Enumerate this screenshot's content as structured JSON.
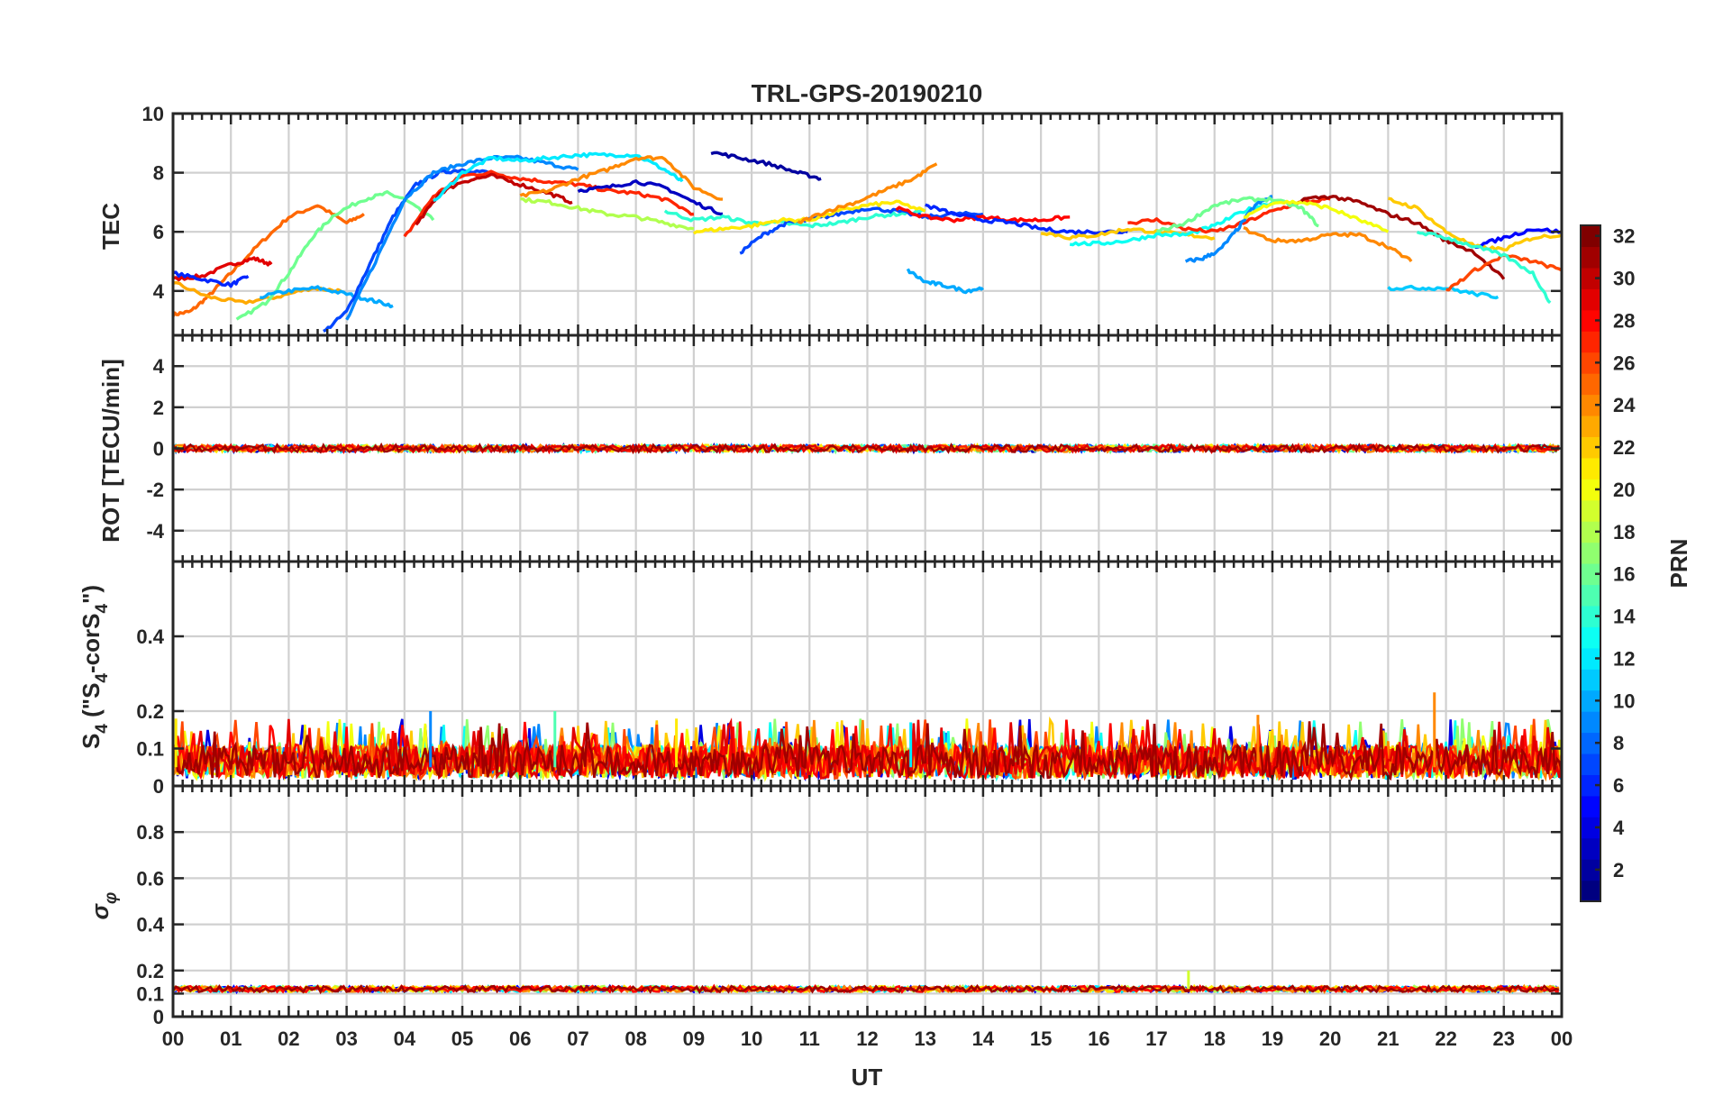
{
  "chart_data": {
    "type": "line",
    "title": "TRL-GPS-20190210",
    "xlabel": "UT",
    "x_ticks": [
      "00",
      "01",
      "02",
      "03",
      "04",
      "05",
      "06",
      "07",
      "08",
      "09",
      "10",
      "11",
      "12",
      "13",
      "14",
      "15",
      "16",
      "17",
      "18",
      "19",
      "20",
      "21",
      "22",
      "23",
      "00"
    ],
    "xlim": [
      0,
      24
    ],
    "grid": true,
    "colorbar": {
      "label": "PRN",
      "range": [
        1,
        32
      ],
      "ticks": [
        2,
        4,
        6,
        8,
        10,
        12,
        14,
        16,
        18,
        20,
        22,
        24,
        26,
        28,
        30,
        32
      ],
      "colormap": "jet",
      "position": "right"
    },
    "panels": [
      {
        "id": "tec",
        "ylabel": "TEC",
        "ylim": [
          2.5,
          10
        ],
        "yticks": [
          4,
          6,
          8,
          10
        ],
        "series": [
          {
            "prn": 25,
            "x": [
              0.0,
              0.3,
              0.6,
              1.0,
              1.5,
              2.0,
              2.5,
              3.0,
              3.3
            ],
            "y": [
              3.2,
              3.3,
              3.8,
              4.6,
              5.6,
              6.5,
              6.9,
              6.3,
              6.6
            ]
          },
          {
            "prn": 29,
            "x": [
              0.0,
              0.5,
              1.0,
              1.4,
              1.7
            ],
            "y": [
              4.4,
              4.5,
              4.9,
              5.1,
              4.9
            ]
          },
          {
            "prn": 6,
            "x": [
              0.0,
              0.5,
              1.0,
              1.3
            ],
            "y": [
              4.6,
              4.4,
              4.2,
              4.5
            ]
          },
          {
            "prn": 23,
            "x": [
              0.0,
              0.6,
              1.2,
              1.8,
              2.4,
              2.9
            ],
            "y": [
              4.3,
              3.8,
              3.6,
              3.8,
              4.1,
              4.0
            ]
          },
          {
            "prn": 16,
            "x": [
              1.1,
              1.6,
              2.0,
              2.4,
              2.8,
              3.3,
              3.7,
              4.0,
              4.5
            ],
            "y": [
              3.0,
              3.6,
              4.6,
              5.8,
              6.6,
              7.1,
              7.3,
              7.1,
              6.4
            ]
          },
          {
            "prn": 10,
            "x": [
              1.5,
              2.0,
              2.5,
              3.0,
              3.4,
              3.8
            ],
            "y": [
              3.8,
              4.0,
              4.1,
              3.9,
              3.7,
              3.5
            ]
          },
          {
            "prn": 7,
            "x": [
              2.6,
              3.0,
              3.4,
              3.8,
              4.2,
              4.6,
              5.0,
              5.5
            ],
            "y": [
              2.6,
              3.3,
              4.9,
              6.5,
              7.6,
              8.0,
              8.1,
              8.0
            ]
          },
          {
            "prn": 9,
            "x": [
              3.0,
              3.5,
              4.0,
              4.5,
              5.0,
              5.5,
              6.0,
              6.5,
              7.0
            ],
            "y": [
              3.0,
              5.0,
              7.1,
              8.0,
              8.3,
              8.5,
              8.5,
              8.3,
              8.1
            ]
          },
          {
            "prn": 27,
            "x": [
              4.0,
              4.5,
              5.0,
              5.5,
              6.0,
              6.5,
              7.0,
              7.5,
              8.0,
              8.5,
              9.0
            ],
            "y": [
              5.8,
              7.2,
              7.9,
              8.0,
              7.8,
              7.7,
              7.6,
              7.4,
              7.3,
              7.1,
              6.6
            ]
          },
          {
            "prn": 30,
            "x": [
              4.2,
              4.6,
              5.0,
              5.5,
              6.0,
              6.5,
              6.9
            ],
            "y": [
              6.2,
              7.3,
              7.7,
              7.9,
              7.6,
              7.3,
              7.0
            ]
          },
          {
            "prn": 12,
            "x": [
              4.5,
              5.0,
              5.5,
              6.0,
              6.5,
              7.0,
              7.5,
              8.0,
              8.5,
              8.8
            ],
            "y": [
              7.0,
              8.0,
              8.5,
              8.4,
              8.5,
              8.6,
              8.6,
              8.6,
              8.1,
              7.7
            ]
          },
          {
            "prn": 24,
            "x": [
              6.0,
              6.5,
              7.0,
              7.5,
              8.0,
              8.5,
              9.0,
              9.5
            ],
            "y": [
              7.2,
              7.4,
              7.8,
              8.1,
              8.5,
              8.5,
              7.5,
              7.1
            ]
          },
          {
            "prn": 18,
            "x": [
              6.0,
              6.5,
              7.0,
              7.5,
              8.0,
              8.5,
              9.0
            ],
            "y": [
              7.1,
              7.0,
              6.8,
              6.6,
              6.5,
              6.3,
              6.1
            ]
          },
          {
            "prn": 3,
            "x": [
              7.0,
              7.5,
              8.0,
              8.5,
              9.0,
              9.5
            ],
            "y": [
              7.4,
              7.5,
              7.7,
              7.5,
              7.0,
              6.6
            ]
          },
          {
            "prn": 2,
            "x": [
              9.3,
              9.8,
              10.3,
              10.8,
              11.2
            ],
            "y": [
              8.7,
              8.5,
              8.3,
              8.0,
              7.8
            ]
          },
          {
            "prn": 14,
            "x": [
              8.5,
              9.0,
              9.5,
              10.0,
              10.5,
              11.0,
              11.5,
              12.0,
              12.5,
              13.0
            ],
            "y": [
              6.7,
              6.4,
              6.5,
              6.3,
              6.3,
              6.2,
              6.3,
              6.5,
              6.6,
              6.7
            ]
          },
          {
            "prn": 7,
            "x": [
              9.8,
              10.2,
              10.6,
              11.0,
              11.5,
              12.0,
              12.5,
              13.0,
              13.5,
              14.0
            ],
            "y": [
              5.3,
              5.9,
              6.3,
              6.4,
              6.6,
              6.8,
              6.7,
              6.5,
              6.6,
              6.6
            ]
          },
          {
            "prn": 21,
            "x": [
              9.0,
              9.5,
              10.0,
              10.5,
              11.0,
              11.5,
              12.0,
              12.5,
              13.0
            ],
            "y": [
              6.0,
              6.1,
              6.2,
              6.4,
              6.4,
              6.7,
              6.9,
              7.0,
              6.7
            ]
          },
          {
            "prn": 24,
            "x": [
              10.8,
              11.3,
              11.8,
              12.3,
              12.8,
              13.2
            ],
            "y": [
              6.3,
              6.7,
              7.0,
              7.4,
              7.8,
              8.3
            ]
          },
          {
            "prn": 10,
            "x": [
              12.7,
              13.0,
              13.3,
              13.7,
              14.0
            ],
            "y": [
              4.7,
              4.3,
              4.2,
              4.0,
              4.1
            ]
          },
          {
            "prn": 28,
            "x": [
              12.5,
              13.0,
              13.5,
              14.0,
              14.5,
              15.0,
              15.5
            ],
            "y": [
              6.8,
              6.5,
              6.4,
              6.5,
              6.4,
              6.4,
              6.5
            ]
          },
          {
            "prn": 6,
            "x": [
              13.0,
              13.5,
              14.0,
              14.5,
              15.0,
              15.5,
              16.0,
              16.5
            ],
            "y": [
              6.9,
              6.6,
              6.4,
              6.3,
              6.1,
              6.0,
              6.0,
              6.0
            ]
          },
          {
            "prn": 22,
            "x": [
              15.0,
              15.5,
              16.0,
              16.5,
              17.0,
              17.5,
              18.0
            ],
            "y": [
              6.0,
              5.8,
              5.9,
              6.1,
              6.0,
              5.9,
              5.8
            ]
          },
          {
            "prn": 13,
            "x": [
              15.5,
              16.0,
              16.5,
              17.0,
              17.5,
              18.0,
              18.5,
              19.0
            ],
            "y": [
              5.6,
              5.6,
              5.7,
              5.9,
              5.9,
              6.2,
              6.7,
              7.0
            ]
          },
          {
            "prn": 27,
            "x": [
              16.5,
              17.0,
              17.5,
              18.0,
              18.5,
              19.0,
              19.5,
              20.0
            ],
            "y": [
              6.3,
              6.4,
              6.1,
              6.0,
              6.3,
              6.7,
              7.0,
              7.1
            ]
          },
          {
            "prn": 9,
            "x": [
              17.5,
              17.8,
              18.1,
              18.4,
              18.7,
              19.0
            ],
            "y": [
              5.0,
              5.1,
              5.4,
              6.1,
              6.9,
              7.2
            ]
          },
          {
            "prn": 16,
            "x": [
              17.0,
              17.5,
              18.0,
              18.5,
              19.0,
              19.5,
              19.8
            ],
            "y": [
              6.0,
              6.3,
              6.9,
              7.1,
              7.1,
              6.8,
              6.2
            ]
          },
          {
            "prn": 24,
            "x": [
              18.5,
              19.0,
              19.5,
              20.0,
              20.5,
              21.0,
              21.4
            ],
            "y": [
              6.1,
              5.7,
              5.7,
              5.9,
              5.9,
              5.5,
              5.0
            ]
          },
          {
            "prn": 20,
            "x": [
              18.5,
              19.0,
              19.5,
              20.0,
              20.5,
              21.0
            ],
            "y": [
              6.5,
              7.0,
              7.0,
              6.8,
              6.4,
              6.0
            ]
          },
          {
            "prn": 31,
            "x": [
              19.5,
              20.0,
              20.5,
              21.0,
              21.5,
              22.0,
              22.5,
              23.0
            ],
            "y": [
              7.1,
              7.2,
              7.0,
              6.6,
              6.3,
              5.7,
              5.3,
              4.4
            ]
          },
          {
            "prn": 22,
            "x": [
              21.0,
              21.5,
              22.0,
              22.5,
              23.0,
              23.5,
              24.0
            ],
            "y": [
              7.1,
              6.8,
              6.0,
              5.5,
              5.4,
              5.8,
              5.9
            ]
          },
          {
            "prn": 11,
            "x": [
              21.0,
              21.5,
              22.0,
              22.5,
              22.9
            ],
            "y": [
              4.1,
              4.1,
              4.1,
              3.9,
              3.8
            ]
          },
          {
            "prn": 5,
            "x": [
              22.5,
              23.0,
              23.5,
              24.0
            ],
            "y": [
              5.5,
              5.8,
              6.1,
              6.0
            ]
          },
          {
            "prn": 26,
            "x": [
              22.0,
              22.5,
              23.0,
              23.5,
              24.0
            ],
            "y": [
              4.0,
              4.7,
              5.2,
              5.0,
              4.7
            ]
          },
          {
            "prn": 14,
            "x": [
              21.5,
              22.0,
              22.5,
              23.0,
              23.5,
              23.8
            ],
            "y": [
              6.0,
              5.8,
              5.5,
              5.2,
              4.6,
              3.6
            ]
          }
        ]
      },
      {
        "id": "rot",
        "ylabel": "ROT [TECU/min]",
        "ylim": [
          -5.5,
          5.5
        ],
        "yticks": [
          -4,
          -2,
          0,
          2,
          4
        ],
        "description_value": "all satellites near 0 with small fluctuations (|ROT| < 0.3)"
      },
      {
        "id": "s4",
        "ylabel": "S4 (\"S4-corS4\")",
        "ylabel_parts": {
          "a": "S",
          "b": "4",
          "c": " (\"S",
          "d": "4",
          "e": "-corS",
          "f": "4",
          "g": "\")"
        },
        "ylim": [
          0,
          0.6
        ],
        "yticks": [
          0,
          0.1,
          0.2,
          0.4
        ],
        "typical_range": [
          0.02,
          0.12
        ],
        "spikes": [
          {
            "x": 4.45,
            "y": 0.2,
            "prn": 9
          },
          {
            "x": 6.6,
            "y": 0.2,
            "prn": 15
          },
          {
            "x": 8.7,
            "y": 0.18,
            "prn": 21
          },
          {
            "x": 18.75,
            "y": 0.19,
            "prn": 24
          },
          {
            "x": 21.8,
            "y": 0.25,
            "prn": 24
          },
          {
            "x": 12.75,
            "y": 0.17,
            "prn": 12
          },
          {
            "x": 0.05,
            "y": 0.18,
            "prn": 21
          }
        ]
      },
      {
        "id": "sigma_phi",
        "ylabel": "σφ",
        "ylabel_parts": {
          "a": "σ",
          "b": "φ"
        },
        "ylim": [
          0,
          1
        ],
        "yticks": [
          0,
          0.1,
          0.2,
          0.4,
          0.6,
          0.8
        ],
        "typical_value": 0.12,
        "spikes": [
          {
            "x": 17.55,
            "y": 0.2,
            "prn": 19
          }
        ]
      }
    ]
  }
}
